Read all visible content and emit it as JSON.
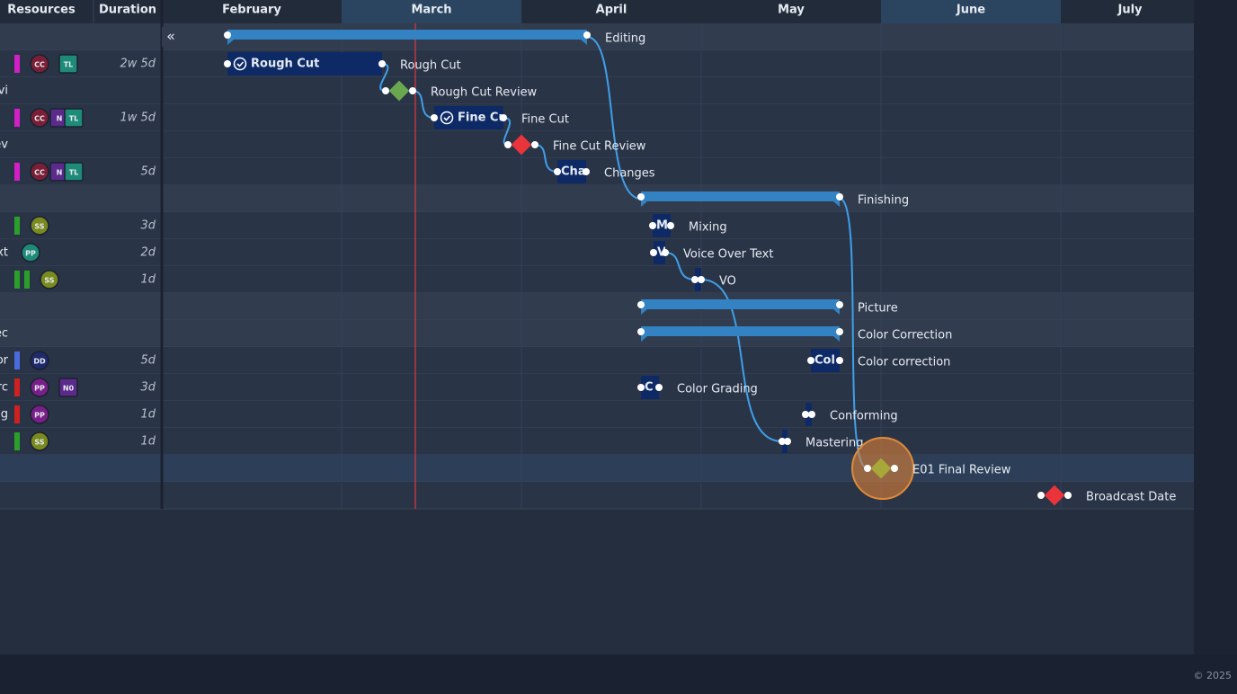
{
  "header": {
    "columns": [
      "Resources",
      "Duration"
    ],
    "months": [
      "February",
      "March",
      "April",
      "May",
      "June",
      "July"
    ]
  },
  "collapse_icon": "«",
  "resource_rows": [
    {
      "resources": [
        "CC",
        "TL"
      ],
      "duration": "2w 5d"
    },
    {
      "name": "vi"
    },
    {
      "resources": [
        "CC",
        "N",
        "TL"
      ],
      "duration": "1w 5d"
    },
    {
      "name": "ev"
    },
    {
      "resources": [
        "CC",
        "N",
        "TL"
      ],
      "duration": "5d"
    },
    {
      "resources": [
        "SS"
      ],
      "duration": "3d"
    },
    {
      "name": "xt",
      "resources": [
        "PP"
      ],
      "duration": "2d"
    },
    {
      "resources": [
        "SS"
      ],
      "duration": "1d"
    },
    {
      "name": "ec"
    },
    {
      "name": "or",
      "resources": [
        "DD"
      ],
      "duration": "5d"
    },
    {
      "name": "rc",
      "resources": [
        "PP",
        "N0"
      ],
      "duration": "3d"
    },
    {
      "name": "g",
      "resources": [
        "PP"
      ],
      "duration": "1d"
    },
    {
      "resources": [
        "SS"
      ],
      "duration": "1d"
    }
  ],
  "tasks": [
    {
      "label": "Editing"
    },
    {
      "label": "Rough Cut",
      "bar_text": "Rough Cut"
    },
    {
      "label": "Rough Cut Review"
    },
    {
      "label": "Fine Cut",
      "bar_text": "Fine Cu"
    },
    {
      "label": "Fine Cut Review"
    },
    {
      "label": "Changes",
      "bar_text": "Cha"
    },
    {
      "label": "Finishing"
    },
    {
      "label": "Mixing",
      "bar_text": "M"
    },
    {
      "label": "Voice Over Text",
      "bar_text": "V"
    },
    {
      "label": "VO"
    },
    {
      "label": "Picture"
    },
    {
      "label": "Color Correction"
    },
    {
      "label": "Color correction",
      "bar_text": "Col"
    },
    {
      "label": "Color Grading",
      "bar_text": "C"
    },
    {
      "label": "Conforming"
    },
    {
      "label": "Mastering"
    },
    {
      "label": "E01 Final Review"
    },
    {
      "label": "Broadcast Date"
    }
  ],
  "footer": {
    "copyright": "© 2025"
  }
}
